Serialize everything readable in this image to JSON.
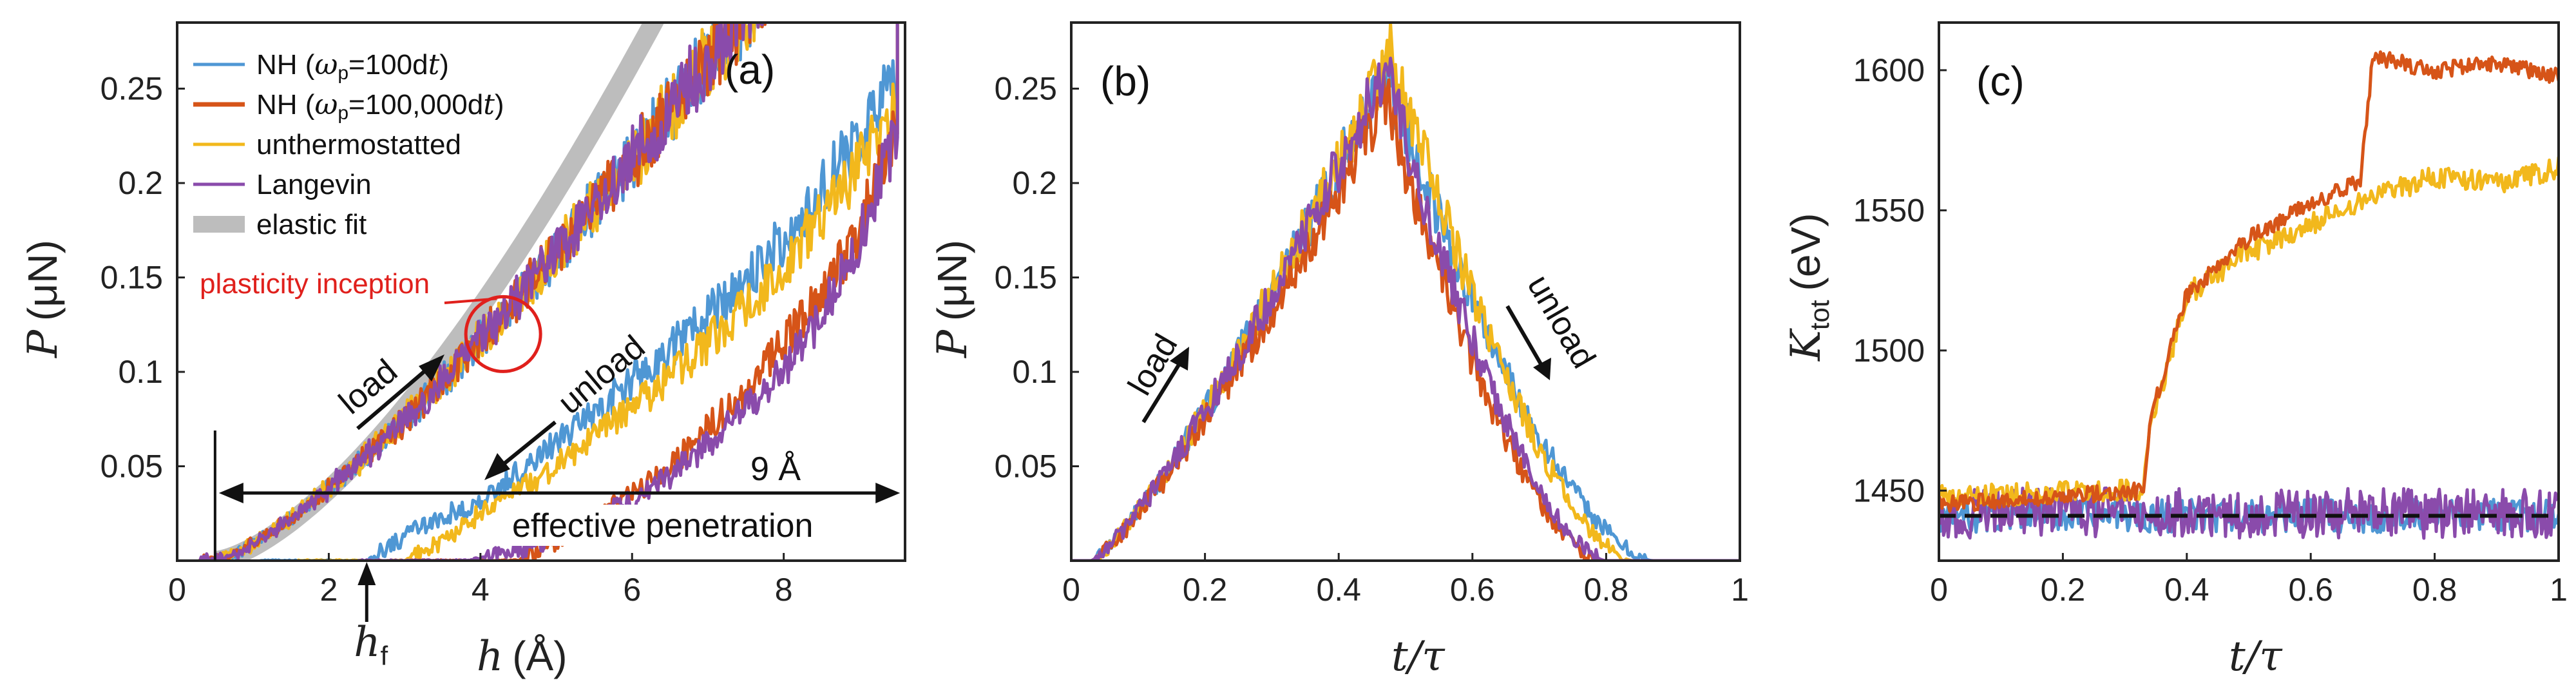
{
  "colors": {
    "nh100": "#4f97d4",
    "nh100000": "#d65418",
    "unthermostatted": "#f2b81c",
    "langevin": "#8a4bab",
    "elastic_fit": "#bdbdbd",
    "annotation_red": "#e0201c",
    "baseline": "#111111"
  },
  "chart_data": [
    {
      "type": "line",
      "panel_label": "(a)",
      "xlabel_var": "h",
      "xlabel_unit": "(Å)",
      "ylabel_var": "P",
      "ylabel_unit": "(μN)",
      "xlim": [
        0,
        9.6
      ],
      "ylim": [
        0,
        0.285
      ],
      "xticks": [
        0,
        2,
        4,
        6,
        8
      ],
      "xtick_labels": [
        "0",
        "2",
        "4",
        "6",
        "8"
      ],
      "yticks": [
        0.05,
        0.1,
        0.15,
        0.2,
        0.25
      ],
      "ytick_labels": [
        "0.05",
        "0.1",
        "0.15",
        "0.2",
        "0.25"
      ],
      "legend": {
        "placement": "top-left",
        "entries": [
          {
            "key": "nh100",
            "label": "NH (ωp=100dt)"
          },
          {
            "key": "nh100000",
            "label": "NH (ωp=100,000dt)"
          },
          {
            "key": "unthermostatted",
            "label": "unthermostatted"
          },
          {
            "key": "langevin",
            "label": "Langevin"
          },
          {
            "key": "elastic_fit",
            "label": "elastic fit"
          }
        ]
      },
      "elastic_fit": {
        "h0": 0.5,
        "coefficient": 0.0205,
        "exponent": 1.5
      },
      "series": [
        {
          "key": "nh100",
          "name": "NH (ωp=100dt)",
          "load": {
            "h0": 0.5,
            "coef": 0.0224,
            "exp": 1.32,
            "hmax": 9.5
          },
          "unload_x": [
            2.5,
            3.2,
            4.0,
            5.0,
            6.0,
            7.0,
            8.0,
            9.0,
            9.5
          ],
          "unload_y": [
            0.0,
            0.018,
            0.032,
            0.062,
            0.095,
            0.13,
            0.17,
            0.225,
            0.255
          ]
        },
        {
          "key": "nh100000",
          "name": "NH (ωp=100,000dt)",
          "load": {
            "h0": 0.5,
            "coef": 0.0224,
            "exp": 1.32,
            "hmax": 9.5
          },
          "unload_x": [
            4.5,
            5.0,
            5.5,
            6.0,
            6.5,
            7.0,
            7.5,
            8.0,
            8.5,
            9.0,
            9.5
          ],
          "unload_y": [
            0.0,
            0.01,
            0.022,
            0.035,
            0.05,
            0.07,
            0.09,
            0.115,
            0.14,
            0.175,
            0.235
          ]
        },
        {
          "key": "unthermostatted",
          "name": "unthermostatted",
          "load": {
            "h0": 0.5,
            "coef": 0.0224,
            "exp": 1.32,
            "hmax": 9.5
          },
          "unload_x": [
            3.0,
            3.5,
            4.0,
            5.0,
            6.0,
            7.0,
            8.0,
            9.0,
            9.5
          ],
          "unload_y": [
            0.0,
            0.01,
            0.025,
            0.05,
            0.08,
            0.115,
            0.155,
            0.21,
            0.245
          ]
        },
        {
          "key": "langevin",
          "name": "Langevin",
          "load": {
            "h0": 0.5,
            "coef": 0.0224,
            "exp": 1.32,
            "hmax": 9.5
          },
          "unload_x": [
            3.8,
            4.5,
            5.0,
            5.5,
            6.0,
            6.5,
            7.0,
            7.5,
            8.0,
            8.5,
            9.0,
            9.5
          ],
          "unload_y": [
            0.0,
            0.005,
            0.012,
            0.022,
            0.032,
            0.045,
            0.062,
            0.08,
            0.1,
            0.13,
            0.17,
            0.23
          ]
        }
      ],
      "annotations": {
        "plasticity_inception": "plasticity inception",
        "plasticity_point": [
          4.3,
          0.12
        ],
        "load": "load",
        "unload": "unload",
        "width_label": "9 Å",
        "width_from": 0.5,
        "width_to": 9.5,
        "width_y": 0.04,
        "effective_penetration": "effective penetration",
        "hf_label_var": "h",
        "hf_label_sub": "f",
        "hf_value": 2.5,
        "vline_at": 0.5
      }
    },
    {
      "type": "line",
      "panel_label": "(b)",
      "xlabel": "t/τ",
      "ylabel_var": "P",
      "ylabel_unit": "(μN)",
      "xlim": [
        0,
        1
      ],
      "ylim": [
        0,
        0.285
      ],
      "xticks": [
        0,
        0.2,
        0.4,
        0.6,
        0.8,
        1
      ],
      "xtick_labels": [
        "0",
        "0.2",
        "0.4",
        "0.6",
        "0.8",
        "1"
      ],
      "yticks": [
        0.05,
        0.1,
        0.15,
        0.2,
        0.25
      ],
      "ytick_labels": [
        "0.05",
        "0.1",
        "0.15",
        "0.2",
        "0.25"
      ],
      "series": [
        {
          "key": "nh100",
          "name": "NH (ωp=100dt)",
          "rise_start": 0.03,
          "peak_t": 0.47,
          "peak": 0.26,
          "end_t": 0.87
        },
        {
          "key": "nh100000",
          "name": "NH (ωp=100,000dt)",
          "rise_start": 0.03,
          "peak_t": 0.47,
          "peak": 0.245,
          "end_t": 0.79
        },
        {
          "key": "unthermostatted",
          "name": "unthermostatted",
          "rise_start": 0.03,
          "peak_t": 0.48,
          "peak": 0.27,
          "end_t": 0.84
        },
        {
          "key": "langevin",
          "name": "Langevin",
          "rise_start": 0.03,
          "peak_t": 0.47,
          "peak": 0.26,
          "end_t": 0.8
        }
      ],
      "annotations": {
        "load": "load",
        "unload": "unload"
      }
    },
    {
      "type": "line",
      "panel_label": "(c)",
      "xlabel": "t/τ",
      "ylabel_var": "K",
      "ylabel_sub": "tot",
      "ylabel_unit": "(eV)",
      "xlim": [
        0,
        1
      ],
      "ylim": [
        1425,
        1617
      ],
      "xticks": [
        0,
        0.2,
        0.4,
        0.6,
        0.8,
        1
      ],
      "xtick_labels": [
        "0",
        "0.2",
        "0.4",
        "0.6",
        "0.8",
        "1"
      ],
      "yticks": [
        1450,
        1500,
        1550,
        1600
      ],
      "ytick_labels": [
        "1450",
        "1500",
        "1550",
        "1600"
      ],
      "baseline": 1441,
      "series": [
        {
          "key": "nh100",
          "name": "NH (ωp=100dt)",
          "x": [
            0,
            1
          ],
          "y": [
            1441,
            1441
          ],
          "noise": 6
        },
        {
          "key": "langevin",
          "name": "Langevin",
          "x": [
            0,
            1
          ],
          "y": [
            1442,
            1442
          ],
          "noise": 9
        },
        {
          "key": "unthermostatted",
          "name": "unthermostatted",
          "x": [
            0,
            0.33,
            0.34,
            0.4,
            0.5,
            0.6,
            0.7,
            0.8,
            0.9,
            1.0
          ],
          "y": [
            1448,
            1450,
            1470,
            1520,
            1535,
            1545,
            1555,
            1562,
            1560,
            1565
          ],
          "noise": 4
        },
        {
          "key": "nh100000",
          "name": "NH (ωp=100,000dt)",
          "x": [
            0,
            0.33,
            0.34,
            0.4,
            0.5,
            0.6,
            0.68,
            0.7,
            0.8,
            0.9,
            1.0
          ],
          "y": [
            1445,
            1450,
            1475,
            1520,
            1540,
            1553,
            1560,
            1605,
            1600,
            1602,
            1598
          ],
          "noise": 3
        }
      ]
    }
  ]
}
